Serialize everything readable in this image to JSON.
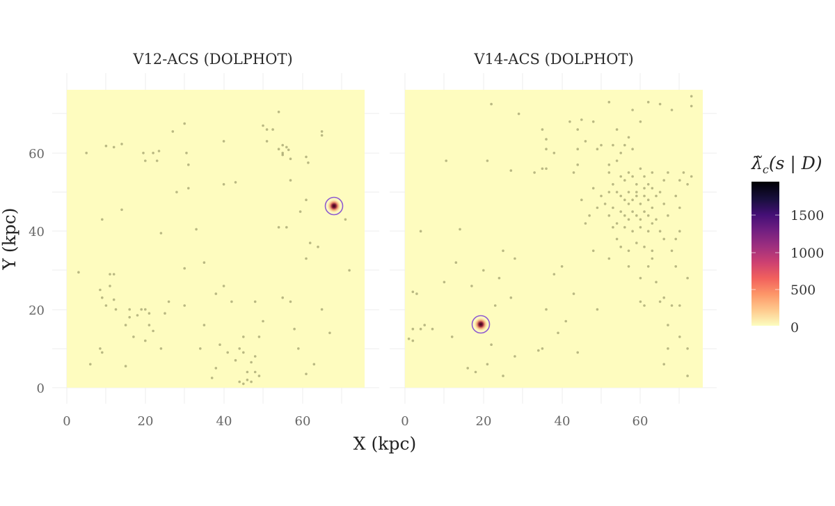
{
  "chart_data": {
    "type": "scatter",
    "subtype": "faceted spatial intensity map with point overlay",
    "facets": [
      {
        "title": "V12-ACS (DOLPHOT)",
        "xlim": [
          0,
          76
        ],
        "ylim": [
          0,
          76
        ],
        "highlight": {
          "x": 68,
          "y": 46.5,
          "label": "circled detection"
        },
        "points": [
          [
            5,
            60
          ],
          [
            10,
            61.8
          ],
          [
            12,
            61.5
          ],
          [
            14,
            62.3
          ],
          [
            19.5,
            60
          ],
          [
            20,
            58
          ],
          [
            22,
            60
          ],
          [
            23,
            58
          ],
          [
            23.5,
            60.5
          ],
          [
            27,
            65.5
          ],
          [
            30,
            67.5
          ],
          [
            30.5,
            60
          ],
          [
            31,
            57
          ],
          [
            28,
            50
          ],
          [
            31,
            51
          ],
          [
            14,
            45.5
          ],
          [
            9,
            43
          ],
          [
            24,
            39.5
          ],
          [
            33,
            40.5
          ],
          [
            30,
            30.5
          ],
          [
            35,
            32
          ],
          [
            40,
            52
          ],
          [
            43,
            52.5
          ],
          [
            40,
            63
          ],
          [
            50,
            67
          ],
          [
            51,
            66
          ],
          [
            52.5,
            66
          ],
          [
            51,
            63
          ],
          [
            54,
            70.5
          ],
          [
            54,
            61
          ],
          [
            55,
            62
          ],
          [
            56,
            61.5
          ],
          [
            55,
            60
          ],
          [
            56.5,
            60.8
          ],
          [
            55,
            59.5
          ],
          [
            57,
            58.5
          ],
          [
            61,
            59
          ],
          [
            61.5,
            57.5
          ],
          [
            65,
            65.5
          ],
          [
            65,
            64.5
          ],
          [
            61,
            48
          ],
          [
            57,
            53
          ],
          [
            56,
            41
          ],
          [
            54,
            41
          ],
          [
            62,
            37
          ],
          [
            61,
            33
          ],
          [
            59.5,
            45
          ],
          [
            64,
            36
          ],
          [
            71,
            43
          ],
          [
            72,
            30
          ],
          [
            3,
            29.5
          ],
          [
            8.5,
            25
          ],
          [
            9,
            23
          ],
          [
            10,
            21
          ],
          [
            11,
            29
          ],
          [
            12,
            29
          ],
          [
            12,
            22.5
          ],
          [
            12.5,
            20
          ],
          [
            11,
            26
          ],
          [
            15,
            16
          ],
          [
            16,
            18
          ],
          [
            16,
            20
          ],
          [
            17,
            13
          ],
          [
            18,
            18.5
          ],
          [
            19,
            20
          ],
          [
            20,
            20
          ],
          [
            20,
            12
          ],
          [
            21,
            19
          ],
          [
            21,
            16
          ],
          [
            22,
            14.5
          ],
          [
            24,
            10
          ],
          [
            15,
            5.5
          ],
          [
            8.5,
            10
          ],
          [
            9,
            9
          ],
          [
            6,
            6
          ],
          [
            26,
            22
          ],
          [
            25,
            19
          ],
          [
            30,
            21
          ],
          [
            35,
            16
          ],
          [
            38,
            24
          ],
          [
            40,
            26
          ],
          [
            42,
            22
          ],
          [
            48,
            22
          ],
          [
            34,
            10
          ],
          [
            37,
            2.5
          ],
          [
            38,
            5
          ],
          [
            39,
            11
          ],
          [
            41,
            9
          ],
          [
            43,
            7
          ],
          [
            44,
            10
          ],
          [
            44,
            1.5
          ],
          [
            45,
            1
          ],
          [
            45,
            9
          ],
          [
            46,
            4
          ],
          [
            47,
            6.5
          ],
          [
            46,
            2
          ],
          [
            47,
            1.5
          ],
          [
            48,
            8
          ],
          [
            48,
            4
          ],
          [
            49,
            3
          ],
          [
            49,
            13
          ],
          [
            45,
            13
          ],
          [
            50,
            17
          ],
          [
            55,
            23
          ],
          [
            57,
            22
          ],
          [
            58,
            15
          ],
          [
            59,
            10
          ],
          [
            61,
            3.5
          ],
          [
            63,
            6
          ],
          [
            67,
            14
          ],
          [
            65,
            20
          ]
        ]
      },
      {
        "title": "V14-ACS (DOLPHOT)",
        "xlim": [
          0,
          76
        ],
        "ylim": [
          0,
          76
        ],
        "highlight": {
          "x": 19.5,
          "y": 16.5,
          "label": "circled detection"
        },
        "points": [
          [
            22,
            72.5
          ],
          [
            29,
            70
          ],
          [
            35,
            66
          ],
          [
            36,
            63.5
          ],
          [
            36,
            61
          ],
          [
            36,
            56
          ],
          [
            35,
            56
          ],
          [
            21,
            58
          ],
          [
            10.5,
            58
          ],
          [
            38,
            60
          ],
          [
            27,
            55.5
          ],
          [
            33,
            55
          ],
          [
            4,
            40
          ],
          [
            14,
            40.5
          ],
          [
            2,
            24.5
          ],
          [
            3,
            24
          ],
          [
            1,
            12.5
          ],
          [
            2,
            12
          ],
          [
            2,
            15
          ],
          [
            4,
            15
          ],
          [
            5,
            16
          ],
          [
            7,
            15
          ],
          [
            12,
            13
          ],
          [
            16,
            5
          ],
          [
            22,
            11
          ],
          [
            21,
            6
          ],
          [
            25,
            3
          ],
          [
            28,
            8
          ],
          [
            34,
            9.5
          ],
          [
            35,
            10
          ],
          [
            36,
            20
          ],
          [
            38,
            29
          ],
          [
            40,
            31
          ],
          [
            41,
            17
          ],
          [
            43,
            24
          ],
          [
            49,
            20
          ],
          [
            44,
            9
          ],
          [
            39,
            14
          ],
          [
            18,
            4
          ],
          [
            23,
            21
          ],
          [
            27,
            23
          ],
          [
            24,
            28
          ],
          [
            10,
            27
          ],
          [
            13,
            32
          ],
          [
            17,
            26
          ],
          [
            20,
            30
          ],
          [
            25,
            35
          ],
          [
            28,
            33
          ],
          [
            42,
            68
          ],
          [
            44,
            66
          ],
          [
            45,
            68.5
          ],
          [
            48,
            68
          ],
          [
            52,
            73
          ],
          [
            58,
            71
          ],
          [
            62,
            73
          ],
          [
            65,
            72.5
          ],
          [
            68,
            71
          ],
          [
            73,
            74.5
          ],
          [
            73,
            72
          ],
          [
            43,
            55
          ],
          [
            44,
            57
          ],
          [
            49,
            61
          ],
          [
            50,
            62
          ],
          [
            53,
            62
          ],
          [
            54,
            58
          ],
          [
            55,
            60
          ],
          [
            56,
            62
          ],
          [
            58,
            61
          ],
          [
            52,
            57
          ],
          [
            52,
            55
          ],
          [
            53,
            52
          ],
          [
            55,
            54
          ],
          [
            56,
            53
          ],
          [
            57,
            55
          ],
          [
            58,
            54
          ],
          [
            59,
            52
          ],
          [
            60,
            56
          ],
          [
            61,
            54
          ],
          [
            62,
            52
          ],
          [
            63,
            55
          ],
          [
            54,
            50
          ],
          [
            55,
            49
          ],
          [
            56,
            48
          ],
          [
            57,
            47
          ],
          [
            58,
            48
          ],
          [
            59,
            49
          ],
          [
            60,
            47
          ],
          [
            61,
            49
          ],
          [
            62,
            48
          ],
          [
            63,
            46
          ],
          [
            64,
            49
          ],
          [
            53,
            46
          ],
          [
            55,
            45
          ],
          [
            56,
            44
          ],
          [
            57,
            43
          ],
          [
            58,
            45
          ],
          [
            59,
            44
          ],
          [
            60,
            43
          ],
          [
            61,
            45
          ],
          [
            62,
            44
          ],
          [
            63,
            42
          ],
          [
            54,
            42
          ],
          [
            56,
            41
          ],
          [
            58,
            40
          ],
          [
            60,
            41
          ],
          [
            62,
            40
          ],
          [
            57,
            50
          ],
          [
            59,
            50
          ],
          [
            61,
            51
          ],
          [
            63,
            51
          ],
          [
            65,
            50
          ],
          [
            66,
            53
          ],
          [
            67,
            55
          ],
          [
            66,
            47
          ],
          [
            67,
            44
          ],
          [
            53,
            41
          ],
          [
            52,
            44
          ],
          [
            51,
            47
          ],
          [
            50,
            49
          ],
          [
            52,
            50
          ],
          [
            48,
            51
          ],
          [
            49,
            46
          ],
          [
            47,
            44
          ],
          [
            45,
            48
          ],
          [
            46,
            42
          ],
          [
            64,
            43
          ],
          [
            65,
            40
          ],
          [
            66,
            38
          ],
          [
            69,
            38
          ],
          [
            68,
            35
          ],
          [
            70,
            53
          ],
          [
            72,
            52
          ],
          [
            73,
            54
          ],
          [
            71,
            55
          ],
          [
            69,
            49
          ],
          [
            70,
            46
          ],
          [
            54,
            38
          ],
          [
            55,
            36
          ],
          [
            57,
            35
          ],
          [
            59,
            37
          ],
          [
            61,
            36
          ],
          [
            63,
            35
          ],
          [
            48,
            35
          ],
          [
            52,
            33
          ],
          [
            57,
            31
          ],
          [
            60,
            28
          ],
          [
            64,
            27
          ],
          [
            65,
            22
          ],
          [
            66,
            23
          ],
          [
            60,
            22
          ],
          [
            61,
            21
          ],
          [
            70,
            21
          ],
          [
            68,
            21
          ],
          [
            67,
            16
          ],
          [
            70,
            13
          ],
          [
            72,
            10
          ],
          [
            67,
            10
          ],
          [
            66,
            6
          ],
          [
            72,
            3
          ],
          [
            72,
            28
          ],
          [
            69,
            31
          ],
          [
            62,
            31
          ],
          [
            63,
            33
          ],
          [
            70,
            40
          ],
          [
            60,
            68
          ],
          [
            57,
            64
          ],
          [
            54,
            66
          ],
          [
            46,
            63
          ],
          [
            44,
            61
          ]
        ]
      }
    ],
    "x": {
      "label": "X (kpc)",
      "ticks": [
        0,
        20,
        40,
        60
      ]
    },
    "y": {
      "label": "Y (kpc)",
      "ticks": [
        0,
        20,
        40,
        60
      ]
    },
    "legend": {
      "title": "λ̃c(s | D)",
      "type": "colorbar",
      "position": "right",
      "ticks": [
        0,
        500,
        1000,
        1500
      ],
      "range": [
        0,
        1950
      ],
      "colormap": "magma (reversed)"
    },
    "grid": true,
    "colors": {
      "panel_bg": "#fefcbf",
      "point": "#8a8a5a",
      "highlight_ring": "#8e5bd0",
      "peak_core": "#3b0a1e",
      "grid": "#ececec",
      "colorbar_stops": [
        "#fcfdbf",
        "#fec98d",
        "#fd9668",
        "#f1605d",
        "#cd4071",
        "#9e2f7f",
        "#721f81",
        "#440f76",
        "#180f3d",
        "#000004"
      ]
    }
  },
  "figure": {
    "panel_titles": [
      "V12-ACS (DOLPHOT)",
      "V14-ACS (DOLPHOT)"
    ],
    "x_axis_title": "X (kpc)",
    "y_axis_title": "Y (kpc)",
    "x_tick_labels": [
      "0",
      "20",
      "40",
      "60"
    ],
    "y_tick_labels": [
      "0",
      "20",
      "40",
      "60"
    ],
    "legend_title_main": "λ̃",
    "legend_title_sub": "c",
    "legend_title_rest": "(s | D)",
    "legend_tick_labels": [
      "0",
      "500",
      "1000",
      "1500"
    ]
  }
}
